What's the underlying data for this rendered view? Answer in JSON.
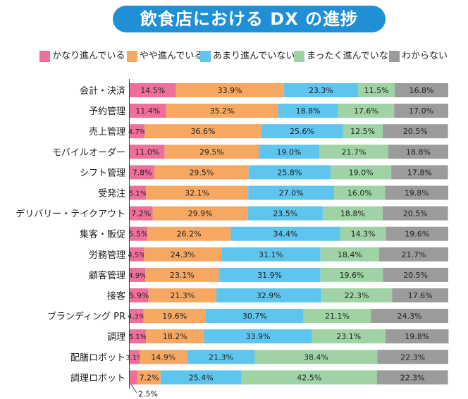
{
  "title": "飲食店における DX の進捗",
  "colors": {
    "title_bg": "#1f8fd6",
    "series": [
      "#ef6f9a",
      "#f6a862",
      "#5ec5ee",
      "#9fd3a5",
      "#9b9b9b"
    ]
  },
  "chart_data": {
    "type": "bar",
    "orientation": "horizontal",
    "stacked": true,
    "unit": "%",
    "xlim": [
      0,
      100
    ],
    "categories": [
      "会計・決済",
      "予約管理",
      "売上管理",
      "モバイルオーダー",
      "シフト管理",
      "受発注",
      "デリバリー・テイクアウト",
      "集客・販促",
      "労務管理",
      "顧客管理",
      "接客",
      "ブランディング PR",
      "調理",
      "配膳ロボット",
      "調理ロボット"
    ],
    "series": [
      {
        "name": "かなり進んでいる",
        "values": [
          14.5,
          11.4,
          4.7,
          11.0,
          7.8,
          5.1,
          7.2,
          5.5,
          4.5,
          4.9,
          5.9,
          4.3,
          5.1,
          3.1,
          2.5
        ]
      },
      {
        "name": "やや進んでいる",
        "values": [
          33.9,
          35.2,
          36.6,
          29.5,
          29.5,
          32.1,
          29.9,
          26.2,
          24.3,
          23.1,
          21.3,
          19.6,
          18.2,
          14.9,
          7.2
        ]
      },
      {
        "name": "あまり進んでいない",
        "values": [
          23.3,
          18.8,
          25.6,
          19.0,
          25.8,
          27.0,
          23.5,
          34.4,
          31.1,
          31.9,
          32.9,
          30.7,
          33.9,
          21.3,
          25.4
        ]
      },
      {
        "name": "まったく進んでいない",
        "values": [
          11.5,
          17.6,
          12.5,
          21.7,
          19.0,
          16.0,
          18.8,
          14.3,
          18.4,
          19.6,
          22.3,
          21.1,
          23.1,
          38.4,
          42.5
        ]
      },
      {
        "name": "わからない",
        "values": [
          16.8,
          17.0,
          20.5,
          18.8,
          17.8,
          19.8,
          20.5,
          19.6,
          21.7,
          20.5,
          17.6,
          24.3,
          19.8,
          22.3,
          22.3
        ]
      }
    ]
  }
}
